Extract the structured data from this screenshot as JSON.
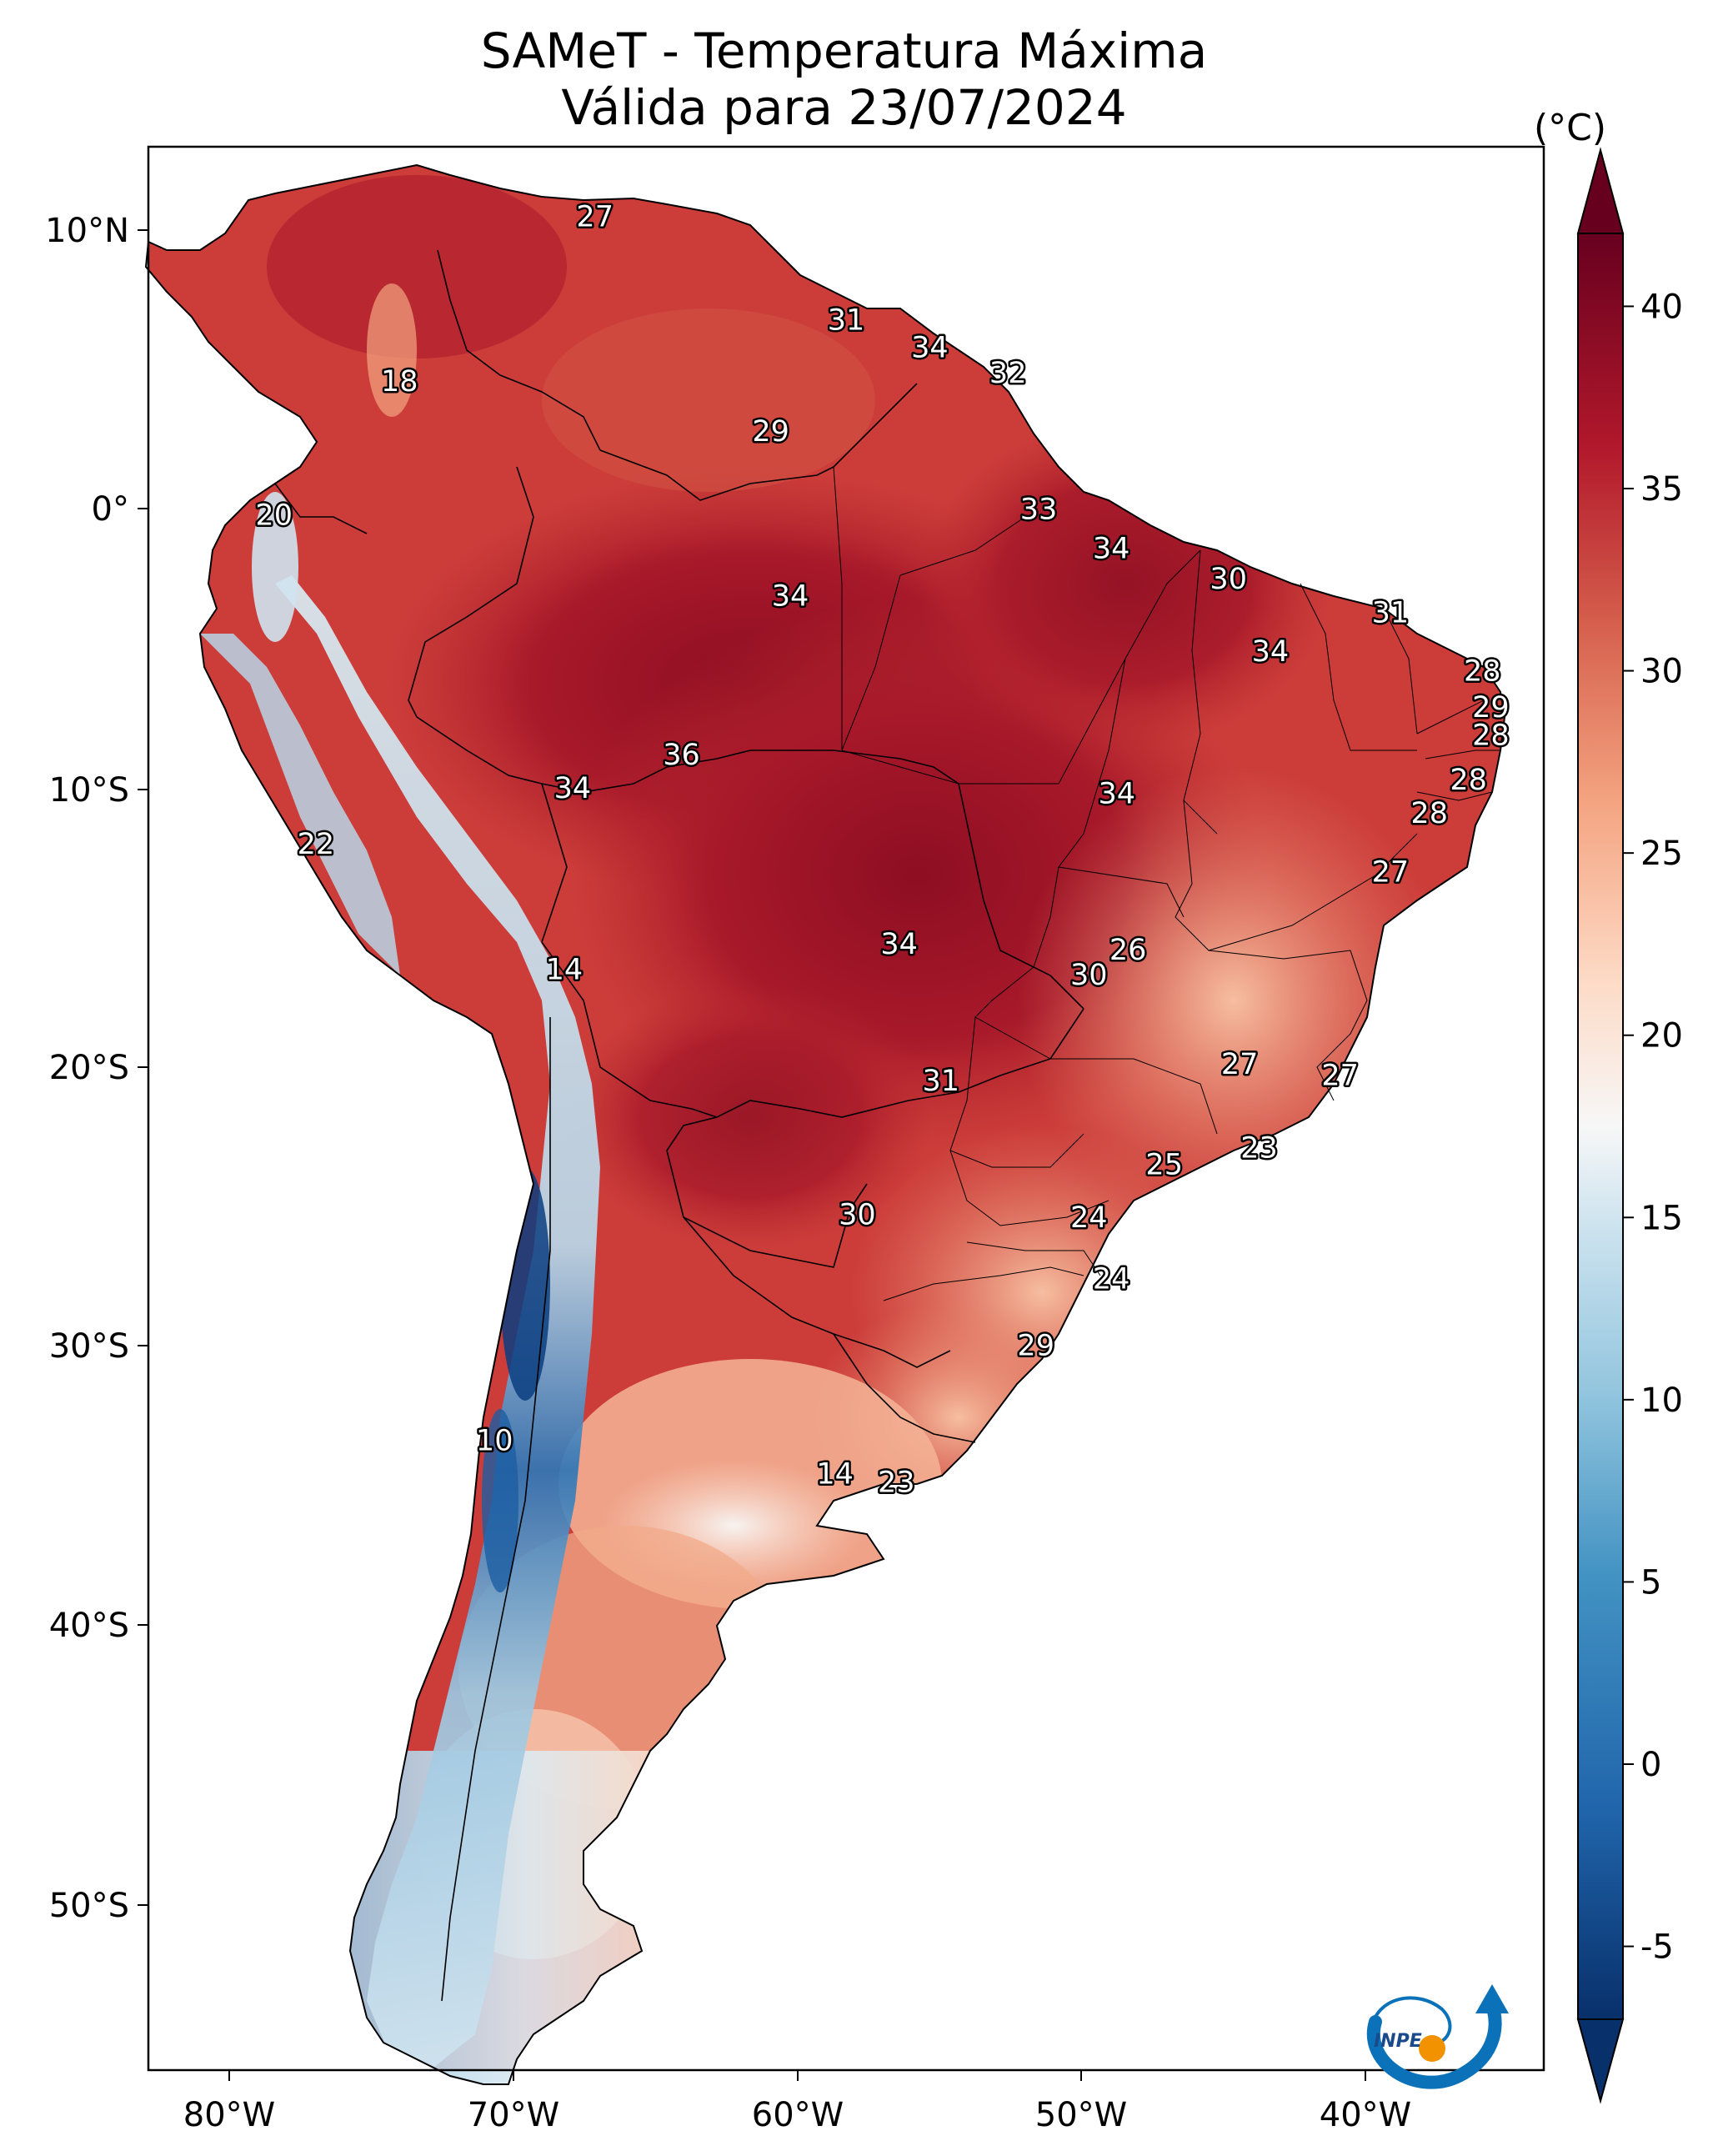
{
  "title_line1": "SAMeT - Temperatura Máxima",
  "title_line2": "Válida para 23/07/2024",
  "colorbar": {
    "unit": "(°C)",
    "ticks": [
      "40",
      "35",
      "30",
      "25",
      "20",
      "15",
      "10",
      "5",
      "0",
      "-5"
    ],
    "range": [
      -7,
      42
    ],
    "stops": [
      "#08306b",
      "#2166ac",
      "#4393c3",
      "#92c5de",
      "#d1e5f0",
      "#f7f7f7",
      "#fddbc7",
      "#f4a582",
      "#d6604d",
      "#b2182b",
      "#67001f"
    ]
  },
  "axes": {
    "lon_labels": [
      "80°W",
      "70°W",
      "60°W",
      "50°W",
      "40°W"
    ],
    "lat_labels": [
      "10°N",
      "0°",
      "10°S",
      "20°S",
      "30°S",
      "40°S",
      "50°S"
    ],
    "lon_range": [
      -83,
      -33
    ],
    "lat_range": [
      -56,
      13
    ]
  },
  "logo": {
    "text": "INPE",
    "colors": [
      "#0b72b9",
      "#f39200"
    ]
  },
  "map_data": {
    "type": "contour-map",
    "variable": "Temperatura Máxima",
    "unit": "°C",
    "city_values": [
      {
        "value": "27",
        "lon": -67,
        "lat": 10.5
      },
      {
        "value": "18",
        "lon": -74,
        "lat": 4.6
      },
      {
        "value": "31",
        "lon": -58,
        "lat": 6.8
      },
      {
        "value": "34",
        "lon": -55,
        "lat": 5.8
      },
      {
        "value": "32",
        "lon": -52.2,
        "lat": 4.9
      },
      {
        "value": "29",
        "lon": -60.7,
        "lat": 2.8
      },
      {
        "value": "20",
        "lon": -78.5,
        "lat": -0.2
      },
      {
        "value": "33",
        "lon": -51.1,
        "lat": 0.0
      },
      {
        "value": "34",
        "lon": -48.5,
        "lat": -1.4
      },
      {
        "value": "30",
        "lon": -44.3,
        "lat": -2.5
      },
      {
        "value": "34",
        "lon": -60,
        "lat": -3.1
      },
      {
        "value": "31",
        "lon": -38.5,
        "lat": -3.7
      },
      {
        "value": "34",
        "lon": -42.8,
        "lat": -5.1
      },
      {
        "value": "28",
        "lon": -35.2,
        "lat": -5.8
      },
      {
        "value": "29",
        "lon": -34.9,
        "lat": -7.1
      },
      {
        "value": "28",
        "lon": -34.9,
        "lat": -8.1
      },
      {
        "value": "36",
        "lon": -63.9,
        "lat": -8.8
      },
      {
        "value": "34",
        "lon": -67.8,
        "lat": -10.0
      },
      {
        "value": "34",
        "lon": -48.3,
        "lat": -10.2
      },
      {
        "value": "28",
        "lon": -35.7,
        "lat": -9.7
      },
      {
        "value": "28",
        "lon": -37.1,
        "lat": -10.9
      },
      {
        "value": "22",
        "lon": -77.0,
        "lat": -12.0
      },
      {
        "value": "27",
        "lon": -38.5,
        "lat": -13.0
      },
      {
        "value": "34",
        "lon": -56.1,
        "lat": -15.6
      },
      {
        "value": "26",
        "lon": -47.9,
        "lat": -15.8
      },
      {
        "value": "14",
        "lon": -68.1,
        "lat": -16.5
      },
      {
        "value": "30",
        "lon": -49.3,
        "lat": -16.7
      },
      {
        "value": "27",
        "lon": -43.9,
        "lat": -19.9
      },
      {
        "value": "27",
        "lon": -40.3,
        "lat": -20.3
      },
      {
        "value": "31",
        "lon": -54.6,
        "lat": -20.5
      },
      {
        "value": "23",
        "lon": -43.2,
        "lat": -22.9
      },
      {
        "value": "25",
        "lon": -46.6,
        "lat": -23.5
      },
      {
        "value": "24",
        "lon": -49.3,
        "lat": -25.4
      },
      {
        "value": "30",
        "lon": -57.6,
        "lat": -25.3
      },
      {
        "value": "24",
        "lon": -48.5,
        "lat": -27.6
      },
      {
        "value": "29",
        "lon": -51.2,
        "lat": -30.0
      },
      {
        "value": "10",
        "lon": -70.6,
        "lat": -33.4
      },
      {
        "value": "14",
        "lon": -58.4,
        "lat": -34.6
      },
      {
        "value": "23",
        "lon": -56.2,
        "lat": -34.9
      }
    ]
  }
}
